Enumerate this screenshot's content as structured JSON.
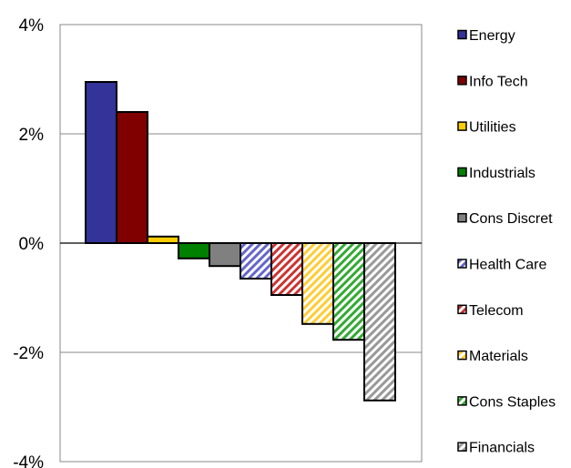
{
  "chart_data": {
    "type": "bar",
    "title": "",
    "xlabel": "",
    "ylabel": "",
    "ylim": [
      -4,
      4
    ],
    "yticks": [
      {
        "value": 4,
        "label": "4%"
      },
      {
        "value": 2,
        "label": "2%"
      },
      {
        "value": 0,
        "label": "0%"
      },
      {
        "value": -2,
        "label": "-2%"
      },
      {
        "value": -4,
        "label": "-4%"
      }
    ],
    "grid": true,
    "legend_position": "right",
    "categories": [
      "Energy",
      "Info Tech",
      "Utilities",
      "Industrials",
      "Cons Discret",
      "Health Care",
      "Telecom",
      "Materials",
      "Cons Staples",
      "Financials"
    ],
    "values": [
      2.95,
      2.4,
      0.12,
      -0.28,
      -0.42,
      -0.65,
      -0.95,
      -1.48,
      -1.77,
      -2.88
    ],
    "colors": [
      "#333399",
      "#800000",
      "#FFCC00",
      "#008000",
      "#808080",
      "#6666CC",
      "#CC3333",
      "#FFCC33",
      "#33AA33",
      "#999999"
    ],
    "patterns": [
      "solid",
      "solid",
      "solid",
      "solid",
      "solid",
      "hatched",
      "hatched",
      "hatched",
      "hatched",
      "hatched"
    ]
  }
}
